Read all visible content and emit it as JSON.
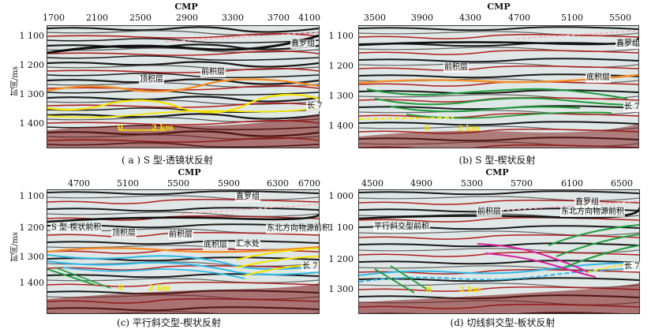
{
  "axis_title_x": "CMP",
  "axis_title_y": "时间/ms",
  "panels": [
    {
      "id": "a",
      "x_ticks": [
        "1700",
        "2100",
        "2500",
        "2900",
        "3300",
        "3700",
        "4100"
      ],
      "y_ticks": [
        "1 100",
        "1 200",
        "1 300",
        "1 400"
      ],
      "labels": {
        "topset": "顶积层",
        "foreset": "前积层",
        "zhiluo": "直罗组",
        "chang7": "长 7",
        "scale_0": "0",
        "scale_km": "2 km"
      },
      "caption": "( a ) S 型-透镜状反射"
    },
    {
      "id": "b",
      "x_ticks": [
        "3500",
        "3900",
        "4300",
        "4700",
        "5100",
        "5500"
      ],
      "y_ticks": [
        "1 100",
        "1 200",
        "1 300",
        "1 400"
      ],
      "labels": {
        "foreset": "前积层",
        "bottomset": "底积层",
        "zhiluo": "直罗组",
        "chang7": "长 7",
        "scale_0": "0",
        "scale_km": "2 km"
      },
      "caption": "(b) S 型-楔状反射"
    },
    {
      "id": "c",
      "x_ticks": [
        "4700",
        "5100",
        "5500",
        "5900",
        "6300",
        "6700"
      ],
      "y_ticks": [
        "1 100",
        "1 200",
        "1 300",
        "1 400"
      ],
      "labels": {
        "s_wedge": "S 型-楔状前积",
        "topset": "顶积层",
        "foreset": "前积层",
        "bottomset": "底积层",
        "confluence": "汇水处",
        "ne_source": "东北方向物源前积",
        "zhiluo": "直罗组",
        "chang7": "长 7",
        "scale_0": "0",
        "scale_km": "2 km"
      },
      "caption": "(c) 平行斜交型-楔状反射"
    },
    {
      "id": "d",
      "x_ticks": [
        "4500",
        "4900",
        "5300",
        "5700",
        "6100",
        "6500"
      ],
      "y_ticks": [
        "1 000",
        "1 100",
        "1 200",
        "1 300"
      ],
      "labels": {
        "parallel_oblique": "平行斜交型前积",
        "foreset": "前积层",
        "zhiluo": "直罗组",
        "ne_source": "东北方向物源前积",
        "chang7": "长 7",
        "scale_0": "0",
        "scale_km": "2 km"
      },
      "caption": "(d) 切线斜交型-板状反射"
    }
  ],
  "colors": {
    "seismic_dark": "#1a1a1a",
    "seismic_red": "#b01e1e",
    "seismic_light": "#dfe8e6",
    "horizon_orange": "#f28c28",
    "horizon_yellow": "#f5e400",
    "horizon_green": "#1f9a3a",
    "horizon_cyan": "#2fb8e8",
    "horizon_magenta": "#d81f9c",
    "horizon_pink": "#ff9fb0"
  }
}
